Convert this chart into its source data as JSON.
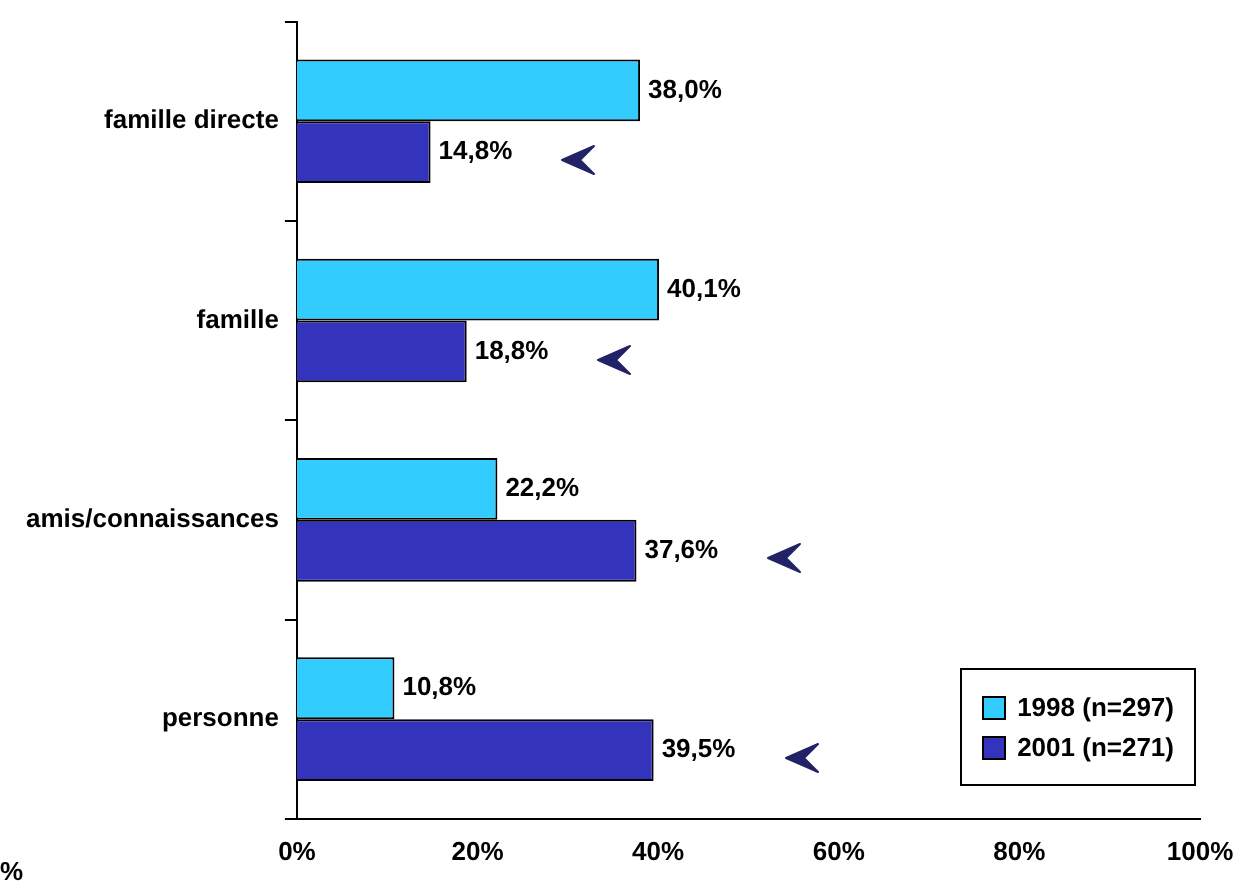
{
  "chart_data": {
    "type": "bar",
    "orientation": "horizontal",
    "categories": [
      "famille directe",
      "famille",
      "amis/connaissances",
      "personne"
    ],
    "series": [
      {
        "name": "1998 (n=297)",
        "color": "#33ccff",
        "values": [
          38.0,
          40.1,
          22.2,
          10.8
        ],
        "value_labels": [
          "38,0%",
          "40,1%",
          "22,2%",
          "10,8%"
        ]
      },
      {
        "name": "2001 (n=271)",
        "color": "#3333bb",
        "values": [
          14.8,
          18.8,
          37.6,
          39.5
        ],
        "value_labels": [
          "14,8%",
          "18,8%",
          "37,6%",
          "39,5%"
        ]
      }
    ],
    "xlim": [
      0,
      100
    ],
    "xticks": [
      {
        "value": 0,
        "label": "0%"
      },
      {
        "value": 20,
        "label": "20%"
      },
      {
        "value": 40,
        "label": "40%"
      },
      {
        "value": 60,
        "label": "60%"
      },
      {
        "value": 80,
        "label": "80%"
      },
      {
        "value": 100,
        "label": "100%"
      }
    ],
    "grid": false,
    "legend": "bottom right",
    "annotations": [
      "%"
    ]
  }
}
